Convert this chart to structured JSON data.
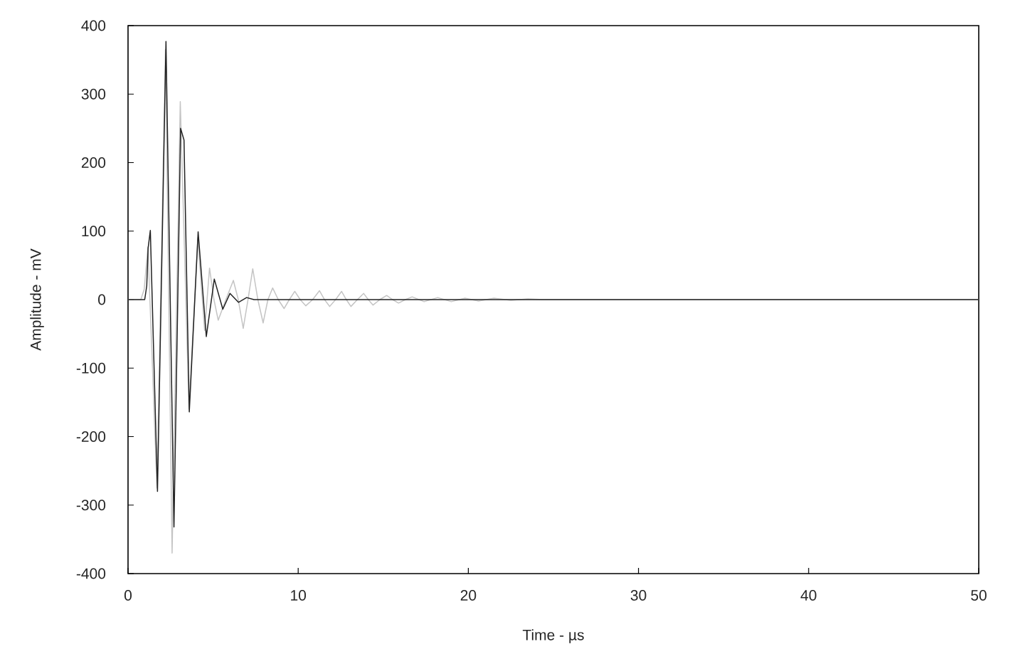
{
  "chart_data": {
    "type": "line",
    "xlabel": "Time - µs",
    "ylabel": "Amplitude - mV",
    "series": [
      {
        "color": "#c4c4c4",
        "x": [
          0,
          0.75,
          0.95,
          1.17,
          1.7,
          2.2,
          2.59,
          3.07,
          3.58,
          4.1,
          4.5,
          4.79,
          5.05,
          5.3,
          5.75,
          6.19,
          6.48,
          6.77,
          7.05,
          7.33,
          7.63,
          7.94,
          8.22,
          8.5,
          8.83,
          9.17,
          9.48,
          9.8,
          10.12,
          10.45,
          10.85,
          11.25,
          11.55,
          11.85,
          12.2,
          12.55,
          12.83,
          13.1,
          13.48,
          13.85,
          14.12,
          14.4,
          14.8,
          15.2,
          15.55,
          15.9,
          16.3,
          16.7,
          17.4,
          18.2,
          19,
          19.8,
          20.6,
          21.5,
          22.5,
          23.5,
          24.5,
          50
        ],
        "values": [
          0,
          0,
          15,
          77,
          -275,
          365,
          -370,
          289,
          -160,
          90,
          -45,
          46,
          0,
          -30,
          0,
          28,
          0,
          -42,
          0,
          45,
          0,
          -34,
          0,
          17,
          0,
          -13,
          0,
          12,
          0,
          -9,
          0,
          13,
          0,
          -10,
          0,
          12,
          0,
          -10,
          0,
          9,
          0,
          -8,
          0,
          6,
          0,
          -5,
          0,
          4,
          -3,
          3,
          -3,
          2,
          -2,
          2,
          -1,
          1,
          0,
          0
        ]
      },
      {
        "color": "#222222",
        "x": [
          0,
          0.98,
          1.1,
          1.18,
          1.31,
          1.73,
          2.23,
          2.7,
          3.09,
          3.29,
          3.6,
          4.12,
          4.6,
          5.07,
          5.57,
          5.99,
          6.49,
          6.97,
          7.4,
          50
        ],
        "values": [
          0,
          0,
          20,
          75,
          101,
          -280,
          377,
          -332,
          250,
          233,
          -164,
          99,
          -54,
          30,
          -14,
          9,
          -4,
          3,
          0,
          0
        ]
      }
    ],
    "xlim": [
      0,
      50
    ],
    "ylim": [
      -400,
      400
    ],
    "xticks": [
      0,
      10,
      20,
      30,
      40,
      50
    ],
    "yticks": [
      -400,
      -300,
      -200,
      -100,
      0,
      100,
      200,
      300,
      400
    ],
    "marker": "none",
    "line_style": "solid"
  }
}
